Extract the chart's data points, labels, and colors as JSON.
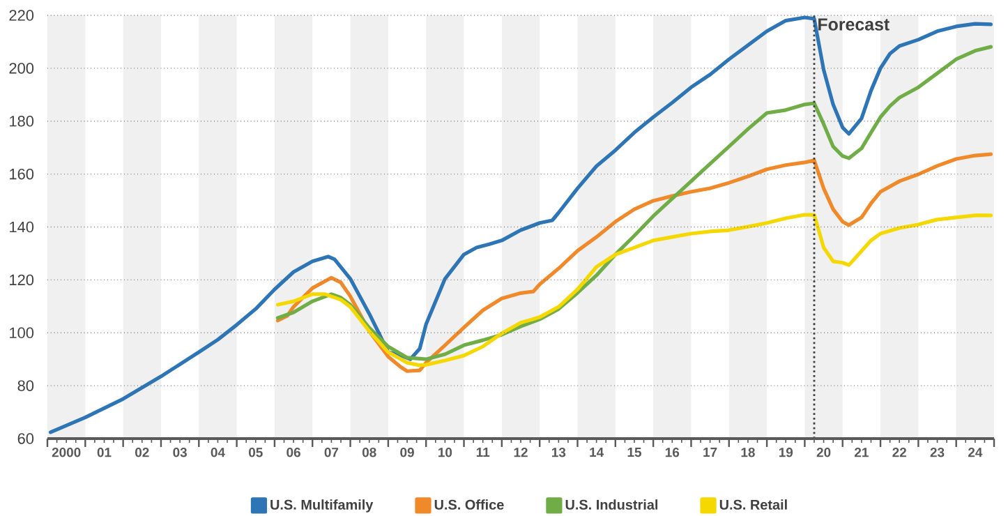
{
  "chart_data": {
    "type": "line",
    "line_style": "solid",
    "marker": "none",
    "grid": "y",
    "legend": "bottom",
    "xlim": [
      "2000-01",
      "2025-01"
    ],
    "ylim": [
      60,
      220
    ],
    "yticks": [
      60,
      80,
      100,
      120,
      140,
      160,
      180,
      200,
      220
    ],
    "xticks": [
      {
        "value": "2000-01",
        "label": null
      },
      {
        "value": "2001-01",
        "label": null
      },
      {
        "value": "2002-01",
        "label": null
      },
      {
        "value": "2003-01",
        "label": null
      },
      {
        "value": "2004-01",
        "label": null
      },
      {
        "value": "2005-01",
        "label": null
      },
      {
        "value": "2006-01",
        "label": null
      },
      {
        "value": "2007-01",
        "label": null
      },
      {
        "value": "2008-01",
        "label": null
      },
      {
        "value": "2009-01",
        "label": null
      },
      {
        "value": "2010-01",
        "label": null
      },
      {
        "value": "2011-01",
        "label": null
      },
      {
        "value": "2012-01",
        "label": null
      },
      {
        "value": "2013-01",
        "label": null
      },
      {
        "value": "2014-01",
        "label": null
      },
      {
        "value": "2015-01",
        "label": null
      },
      {
        "value": "2016-01",
        "label": null
      },
      {
        "value": "2017-01",
        "label": null
      },
      {
        "value": "2018-01",
        "label": null
      },
      {
        "value": "2019-01",
        "label": null
      },
      {
        "value": "2020-01",
        "label": null
      },
      {
        "value": "2021-01",
        "label": null
      },
      {
        "value": "2022-01",
        "label": null
      },
      {
        "value": "2023-01",
        "label": null
      },
      {
        "value": "2024-01",
        "label": null
      },
      {
        "value": "2025-01",
        "label": null
      },
      {
        "value": "2000-07",
        "label": "2000"
      },
      {
        "value": "2001-07",
        "label": "01"
      },
      {
        "value": "2002-07",
        "label": "02"
      },
      {
        "value": "2003-07",
        "label": "03"
      },
      {
        "value": "2004-07",
        "label": "04"
      },
      {
        "value": "2005-07",
        "label": "05"
      },
      {
        "value": "2006-07",
        "label": "06"
      },
      {
        "value": "2007-07",
        "label": "07"
      },
      {
        "value": "2008-07",
        "label": "08"
      },
      {
        "value": "2009-07",
        "label": "09"
      },
      {
        "value": "2010-07",
        "label": "10"
      },
      {
        "value": "2011-07",
        "label": "11"
      },
      {
        "value": "2012-07",
        "label": "12"
      },
      {
        "value": "2013-07",
        "label": "13"
      },
      {
        "value": "2014-07",
        "label": "14"
      },
      {
        "value": "2015-07",
        "label": "15"
      },
      {
        "value": "2016-07",
        "label": "16"
      },
      {
        "value": "2017-07",
        "label": "17"
      },
      {
        "value": "2018-07",
        "label": "18"
      },
      {
        "value": "2019-07",
        "label": "19"
      },
      {
        "value": "2020-07",
        "label": "20"
      },
      {
        "value": "2021-07",
        "label": "21"
      },
      {
        "value": "2022-07",
        "label": "22"
      },
      {
        "value": "2023-07",
        "label": "23"
      },
      {
        "value": "2024-07",
        "label": "24"
      }
    ],
    "bands": [
      {
        "axis": "x",
        "from": "2000-01",
        "to": "2001-01",
        "color": "#f0f0f0"
      },
      {
        "axis": "x",
        "from": "2002-01",
        "to": "2003-01",
        "color": "#f0f0f0"
      },
      {
        "axis": "x",
        "from": "2004-01",
        "to": "2005-01",
        "color": "#f0f0f0"
      },
      {
        "axis": "x",
        "from": "2006-01",
        "to": "2007-01",
        "color": "#f0f0f0"
      },
      {
        "axis": "x",
        "from": "2008-01",
        "to": "2009-01",
        "color": "#f0f0f0"
      },
      {
        "axis": "x",
        "from": "2010-01",
        "to": "2011-01",
        "color": "#f0f0f0"
      },
      {
        "axis": "x",
        "from": "2012-01",
        "to": "2013-01",
        "color": "#f0f0f0"
      },
      {
        "axis": "x",
        "from": "2014-01",
        "to": "2015-01",
        "color": "#f0f0f0"
      },
      {
        "axis": "x",
        "from": "2016-01",
        "to": "2017-01",
        "color": "#f0f0f0"
      },
      {
        "axis": "x",
        "from": "2018-01",
        "to": "2019-01",
        "color": "#f0f0f0"
      },
      {
        "axis": "x",
        "from": "2020-01",
        "to": "2021-01",
        "color": "#f0f0f0"
      },
      {
        "axis": "x",
        "from": "2022-01",
        "to": "2023-01",
        "color": "#f0f0f0"
      },
      {
        "axis": "x",
        "from": "2024-01",
        "to": "2025-01",
        "color": "#f0f0f0"
      }
    ],
    "ref_lines": [
      {
        "axis": "x",
        "value": "2020-04",
        "label": "Forecast",
        "color": "#404040",
        "line_style": "dotted"
      }
    ],
    "series": [
      {
        "name": "U.S. Multifamily",
        "color": "#2e75b6",
        "x": [
          "2000-02",
          "2001-01",
          "2002-01",
          "2003-01",
          "2004-01",
          "2004-07",
          "2005-01",
          "2005-07",
          "2006-01",
          "2006-07",
          "2007-01",
          "2007-06",
          "2007-08",
          "2008-01",
          "2008-07",
          "2009-01",
          "2009-05",
          "2009-08",
          "2009-11",
          "2010-01",
          "2010-07",
          "2011-01",
          "2011-05",
          "2011-09",
          "2012-01",
          "2012-07",
          "2013-01",
          "2013-05",
          "2013-07",
          "2014-01",
          "2014-07",
          "2015-01",
          "2015-07",
          "2016-01",
          "2016-07",
          "2017-01",
          "2017-07",
          "2018-01",
          "2018-07",
          "2019-01",
          "2019-07",
          "2020-01",
          "2020-04",
          "2020-07",
          "2020-10",
          "2021-01",
          "2021-03",
          "2021-07",
          "2021-10",
          "2022-01",
          "2022-04",
          "2022-07",
          "2023-01",
          "2023-07",
          "2024-01",
          "2024-07",
          "2024-12"
        ],
        "values": [
          62.4,
          68,
          75,
          83.5,
          92.7,
          97.4,
          103,
          109,
          116.4,
          123,
          127,
          128.8,
          127.8,
          120.4,
          107.2,
          92.7,
          91.4,
          90,
          94,
          103.2,
          120.4,
          129.6,
          132.2,
          133.5,
          134.9,
          138.8,
          141.5,
          142.5,
          145.4,
          154.6,
          163,
          169,
          175.7,
          181.5,
          187,
          192.8,
          197.6,
          203.4,
          208.7,
          214,
          218,
          219.2,
          218.7,
          199.4,
          186.3,
          177.6,
          175.2,
          181,
          191.5,
          200,
          205.5,
          208.4,
          210.8,
          214,
          215.8,
          216.8,
          216.6
        ]
      },
      {
        "name": "U.S. Office",
        "color": "#f0892a",
        "x": [
          "2006-02",
          "2006-05",
          "2006-07",
          "2007-01",
          "2007-07",
          "2007-10",
          "2008-01",
          "2008-07",
          "2009-01",
          "2009-05",
          "2009-07",
          "2009-11",
          "2010-01",
          "2010-07",
          "2011-01",
          "2011-07",
          "2012-01",
          "2012-07",
          "2012-11",
          "2013-01",
          "2013-07",
          "2014-01",
          "2014-07",
          "2015-01",
          "2015-07",
          "2016-01",
          "2016-07",
          "2017-01",
          "2017-07",
          "2018-01",
          "2018-07",
          "2019-01",
          "2019-07",
          "2020-01",
          "2020-04",
          "2020-07",
          "2020-10",
          "2021-01",
          "2021-03",
          "2021-07",
          "2021-10",
          "2022-01",
          "2022-07",
          "2023-01",
          "2023-07",
          "2024-01",
          "2024-07",
          "2024-12"
        ],
        "values": [
          104.6,
          106.4,
          109.8,
          116.9,
          120.8,
          119,
          113.8,
          100.6,
          91,
          87,
          85.5,
          85.8,
          88.7,
          95.3,
          102,
          108.5,
          113,
          115,
          115.6,
          118.3,
          124.3,
          131,
          136.2,
          142,
          146.7,
          149.9,
          151.7,
          153.3,
          154.6,
          156.7,
          159.1,
          161.8,
          163.4,
          164.4,
          165.2,
          154.6,
          146.7,
          142,
          140.7,
          143.6,
          148.9,
          153.3,
          157.3,
          159.9,
          163.1,
          165.7,
          167,
          167.5
        ]
      },
      {
        "name": "U.S. Industrial",
        "color": "#70ad47",
        "x": [
          "2006-02",
          "2006-07",
          "2007-01",
          "2007-07",
          "2007-10",
          "2008-01",
          "2008-07",
          "2009-01",
          "2009-07",
          "2010-01",
          "2010-07",
          "2011-01",
          "2011-07",
          "2012-01",
          "2012-07",
          "2013-01",
          "2013-07",
          "2014-01",
          "2014-07",
          "2015-01",
          "2015-07",
          "2016-01",
          "2016-07",
          "2017-01",
          "2017-07",
          "2018-01",
          "2018-07",
          "2019-01",
          "2019-07",
          "2020-01",
          "2020-04",
          "2020-07",
          "2020-10",
          "2021-01",
          "2021-03",
          "2021-07",
          "2021-10",
          "2022-01",
          "2022-04",
          "2022-07",
          "2023-01",
          "2023-07",
          "2024-01",
          "2024-07",
          "2024-12"
        ],
        "values": [
          105.6,
          107.7,
          111.9,
          114.6,
          113.3,
          110.6,
          101.9,
          94.8,
          90.6,
          90,
          91.9,
          95.3,
          97.2,
          99.3,
          102.4,
          105.1,
          109,
          115.1,
          121.7,
          129.6,
          136.7,
          144.1,
          150.7,
          157.3,
          163.9,
          170.4,
          177,
          183.1,
          184.2,
          186.3,
          186.8,
          178.9,
          170.4,
          166.8,
          166,
          169.7,
          175.7,
          181.5,
          185.7,
          188.9,
          192.8,
          198.1,
          203.4,
          206.6,
          208.1
        ]
      },
      {
        "name": "U.S. Retail",
        "color": "#f5d800",
        "x": [
          "2006-02",
          "2006-07",
          "2007-01",
          "2007-05",
          "2007-10",
          "2008-01",
          "2008-07",
          "2009-01",
          "2009-07",
          "2009-11",
          "2010-01",
          "2010-07",
          "2011-01",
          "2011-07",
          "2012-01",
          "2012-07",
          "2013-01",
          "2013-07",
          "2014-01",
          "2014-07",
          "2015-01",
          "2015-07",
          "2016-01",
          "2016-07",
          "2017-01",
          "2017-07",
          "2018-01",
          "2018-07",
          "2019-01",
          "2019-07",
          "2020-01",
          "2020-04",
          "2020-07",
          "2020-10",
          "2021-01",
          "2021-03",
          "2021-07",
          "2021-10",
          "2022-01",
          "2022-07",
          "2023-01",
          "2023-07",
          "2024-01",
          "2024-07",
          "2024-12"
        ],
        "values": [
          110.6,
          111.9,
          114.6,
          114.6,
          112.5,
          109.8,
          100.6,
          92.7,
          88.7,
          87.7,
          87.9,
          89.5,
          91.4,
          94.8,
          99.8,
          103.8,
          105.9,
          109.8,
          116.4,
          124.9,
          129.6,
          132.2,
          134.9,
          136.2,
          137.5,
          138.3,
          138.8,
          140.1,
          141.5,
          143.3,
          144.6,
          144.6,
          132.2,
          127,
          126.5,
          125.6,
          130.9,
          134.9,
          137.5,
          139.6,
          140.9,
          142.8,
          143.6,
          144.4,
          144.4
        ]
      }
    ]
  }
}
